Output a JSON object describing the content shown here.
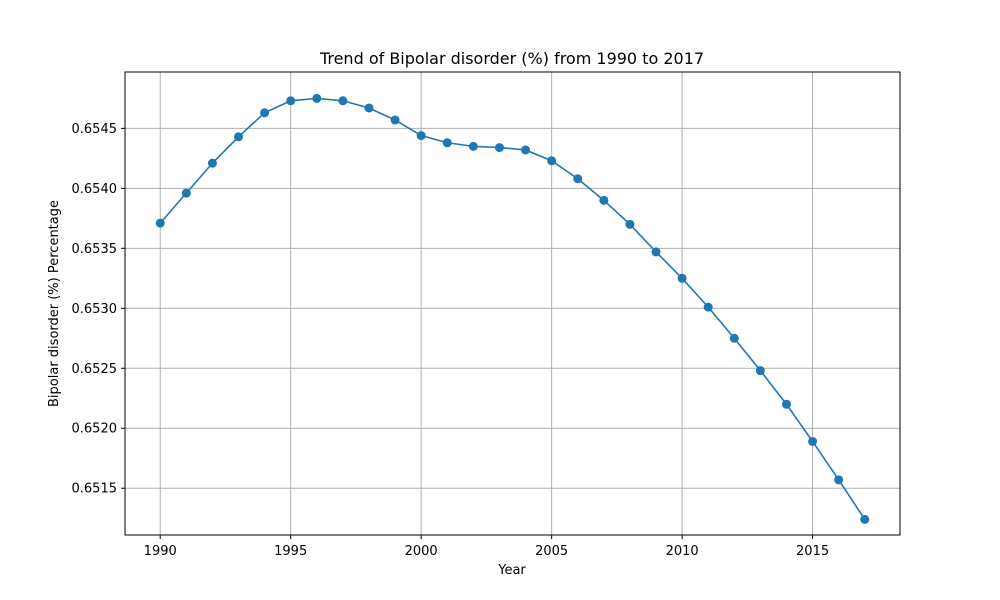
{
  "chart_data": {
    "type": "line",
    "title": "Trend of Bipolar disorder (%) from 1990 to 2017",
    "xlabel": "Year",
    "ylabel": "Bipolar disorder (%) Percentage",
    "xlim": [
      1988.65,
      2018.35
    ],
    "ylim": [
      0.65111,
      0.65497
    ],
    "x_ticks": [
      1990,
      1995,
      2000,
      2005,
      2010,
      2015
    ],
    "y_ticks": [
      0.6515,
      0.652,
      0.6525,
      0.653,
      0.6535,
      0.654,
      0.6545
    ],
    "y_tick_labels": [
      "0.6515",
      "0.6520",
      "0.6525",
      "0.6530",
      "0.6535",
      "0.6540",
      "0.6545"
    ],
    "grid": true,
    "marker": "circle",
    "color": "#1f77b4",
    "x": [
      1990,
      1991,
      1992,
      1993,
      1994,
      1995,
      1996,
      1997,
      1998,
      1999,
      2000,
      2001,
      2002,
      2003,
      2004,
      2005,
      2006,
      2007,
      2008,
      2009,
      2010,
      2011,
      2012,
      2013,
      2014,
      2015,
      2016,
      2017
    ],
    "values": [
      0.65371,
      0.65396,
      0.65421,
      0.65443,
      0.65463,
      0.65473,
      0.65475,
      0.65473,
      0.65467,
      0.65457,
      0.65444,
      0.65438,
      0.65435,
      0.65434,
      0.65432,
      0.65423,
      0.65408,
      0.6539,
      0.6537,
      0.65347,
      0.65325,
      0.65301,
      0.65275,
      0.65248,
      0.6522,
      0.65189,
      0.65157,
      0.65124
    ]
  }
}
